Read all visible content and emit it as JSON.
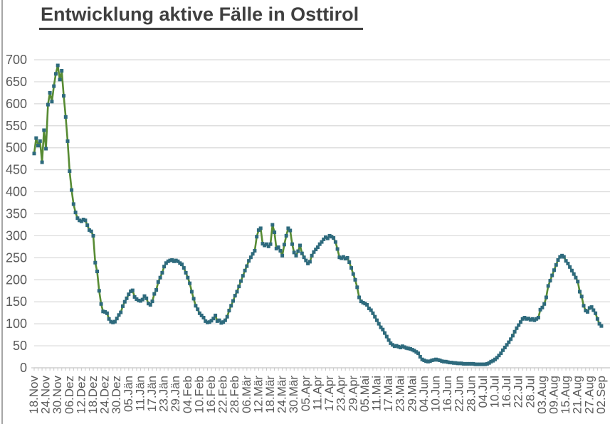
{
  "chart_data": {
    "type": "line",
    "title": "Entwicklung aktive Fälle in Osttirol",
    "xlabel": "",
    "ylabel": "",
    "ylim": [
      0,
      700
    ],
    "y_ticks": [
      0,
      50,
      100,
      150,
      200,
      250,
      300,
      350,
      400,
      450,
      500,
      550,
      600,
      650,
      700
    ],
    "grid": "horizontal",
    "legend": "none",
    "marker": "square",
    "x_label_every_n_points": 6,
    "x_minor_tick_every_n_points": 2,
    "x_tick_labels": [
      "18.Nov",
      "24.Nov",
      "30.Nov",
      "06.Dez",
      "12.Dez",
      "18.Dez",
      "24.Dez",
      "30.Dez",
      "05.Jän",
      "11.Jän",
      "17.Jän",
      "23.Jän",
      "29.Jän",
      "04.Feb",
      "10.Feb",
      "16.Feb",
      "22.Feb",
      "28.Feb",
      "06.Mär",
      "12.Mär",
      "18.Mär",
      "24.Mär",
      "30.Mär",
      "05.Apr",
      "11.Apr",
      "17.Apr",
      "23.Apr",
      "29.Apr",
      "05.Mai",
      "11.Mai",
      "17.Mai",
      "23.Mai",
      "29.Mai",
      "04.Jun",
      "10.Jun",
      "16.Jun",
      "22.Jun",
      "28.Jun",
      "04.Jul",
      "10.Jul",
      "16.Jul",
      "22.Jul",
      "28.Jul",
      "03.Aug",
      "09.Aug",
      "15.Aug",
      "21.Aug",
      "27.Aug",
      "02.Sep"
    ],
    "values": [
      487,
      522,
      505,
      515,
      467,
      540,
      498,
      598,
      625,
      605,
      640,
      668,
      687,
      655,
      675,
      618,
      570,
      515,
      447,
      404,
      372,
      353,
      340,
      335,
      333,
      337,
      335,
      324,
      313,
      310,
      300,
      239,
      219,
      175,
      145,
      128,
      127,
      124,
      111,
      105,
      103,
      105,
      112,
      120,
      126,
      140,
      150,
      158,
      167,
      174,
      176,
      161,
      156,
      153,
      152,
      155,
      163,
      158,
      146,
      143,
      151,
      168,
      177,
      195,
      205,
      216,
      230,
      238,
      242,
      244,
      245,
      242,
      244,
      242,
      238,
      235,
      227,
      216,
      205,
      192,
      173,
      157,
      141,
      133,
      124,
      119,
      114,
      106,
      103,
      104,
      107,
      112,
      119,
      106,
      108,
      102,
      104,
      108,
      116,
      130,
      141,
      152,
      164,
      173,
      185,
      197,
      209,
      221,
      231,
      243,
      251,
      259,
      266,
      298,
      313,
      317,
      282,
      278,
      281,
      276,
      281,
      325,
      308,
      271,
      274,
      266,
      255,
      280,
      300,
      317,
      312,
      281,
      262,
      255,
      265,
      278,
      260,
      251,
      244,
      237,
      241,
      255,
      263,
      269,
      274,
      281,
      286,
      292,
      297,
      294,
      300,
      298,
      295,
      286,
      270,
      251,
      249,
      252,
      248,
      250,
      240,
      227,
      213,
      200,
      183,
      160,
      151,
      148,
      146,
      143,
      135,
      131,
      124,
      116,
      108,
      100,
      92,
      87,
      79,
      71,
      63,
      56,
      52,
      49,
      50,
      48,
      46,
      49,
      47,
      45,
      44,
      43,
      41,
      39,
      36,
      33,
      25,
      19,
      17,
      15,
      14,
      15,
      17,
      18,
      19,
      18,
      17,
      15,
      14,
      14,
      13,
      12,
      12,
      11,
      11,
      10,
      10,
      10,
      9,
      9,
      9,
      9,
      9,
      9,
      8,
      8,
      8,
      8,
      8,
      8,
      9,
      11,
      14,
      16,
      19,
      23,
      28,
      33,
      40,
      46,
      52,
      58,
      65,
      73,
      82,
      90,
      97,
      104,
      111,
      114,
      111,
      112,
      109,
      111,
      108,
      111,
      114,
      132,
      137,
      145,
      160,
      186,
      198,
      210,
      222,
      234,
      245,
      252,
      255,
      252,
      243,
      237,
      229,
      221,
      213,
      205,
      196,
      173,
      162,
      141,
      130,
      127,
      136,
      138,
      131,
      124,
      111,
      100,
      95
    ],
    "colors": {
      "line": "#578b33",
      "marker": "#2e6a7d",
      "grid": "#d9d9d9",
      "axis": "#c9c9c9",
      "tick_labels": "#595959",
      "title": "#3f3f3f",
      "frame_border": "#a6a6a6",
      "background": "#ffffff"
    }
  }
}
